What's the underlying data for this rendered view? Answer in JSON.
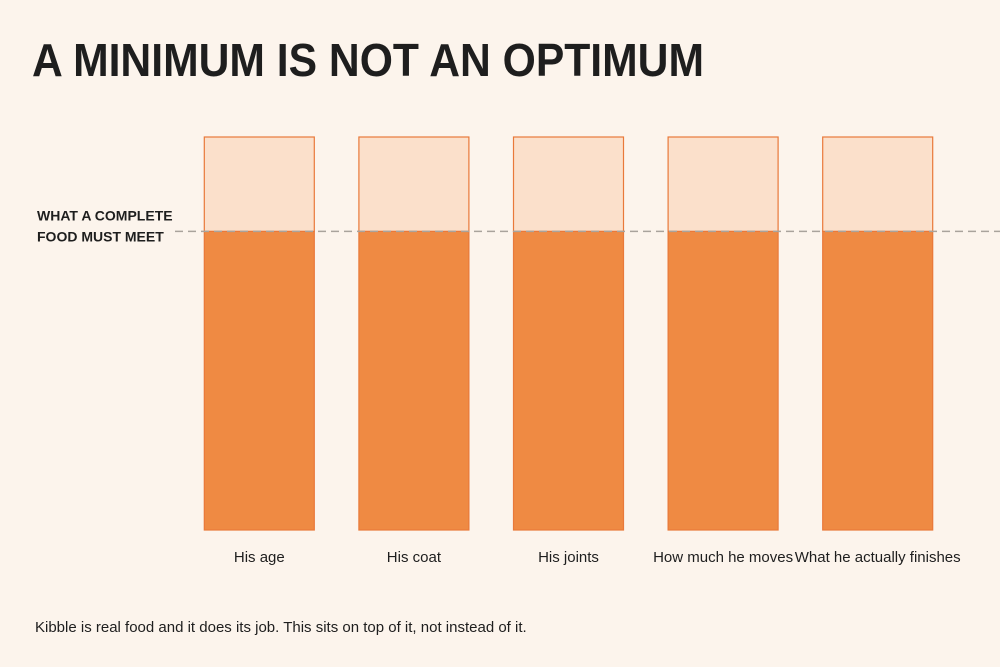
{
  "chart_data": {
    "type": "stacked_bar",
    "title": "A MINIMUM IS NOT AN OPTIMUM",
    "categories": [
      "His age",
      "His coat",
      "His joints",
      "How much he moves",
      "What he actually finishes"
    ],
    "series": [
      {
        "color": "#ef8a43",
        "values": [
          76,
          76,
          76,
          76,
          76
        ]
      },
      {
        "color": "#fbe0cb",
        "values": [
          24,
          24,
          24,
          24,
          24
        ]
      }
    ],
    "ylim": [
      0,
      100
    ],
    "reference_line": {
      "value": 76,
      "label_lines": [
        "WHAT A COMPLETE",
        "FOOD MUST MEET"
      ]
    },
    "note": "Kibble is real food and it does its job. This sits on top of it, not instead of it."
  }
}
